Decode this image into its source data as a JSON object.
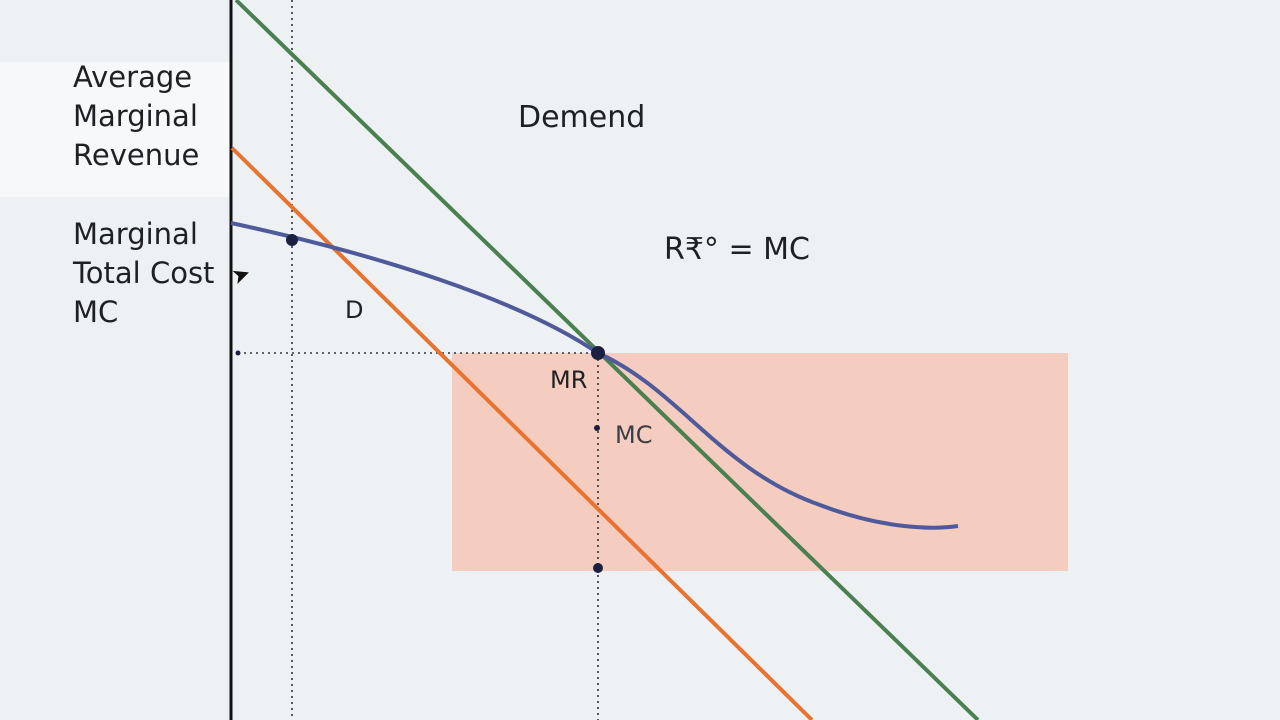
{
  "legend": {
    "group_top": [
      "Average",
      "Marginal",
      "Revenue"
    ],
    "group_bottom": [
      "Marginal",
      "Total Cost",
      "MC"
    ]
  },
  "labels": {
    "demand": "Demend",
    "equality": "R₹° = MC",
    "d": "D",
    "mr": "MR",
    "mc": "MC"
  },
  "colors": {
    "background": "#eef1f4",
    "demand_line": "#4a8050",
    "mr_line": "#e8732f",
    "mc_curve": "#4f5a9a",
    "highlight_region": "#f4c7b6",
    "axis": "#111111",
    "guide_line": "#333333",
    "point": "#1b2040"
  },
  "icons": {
    "cursor": "pointer-cursor-icon"
  }
}
